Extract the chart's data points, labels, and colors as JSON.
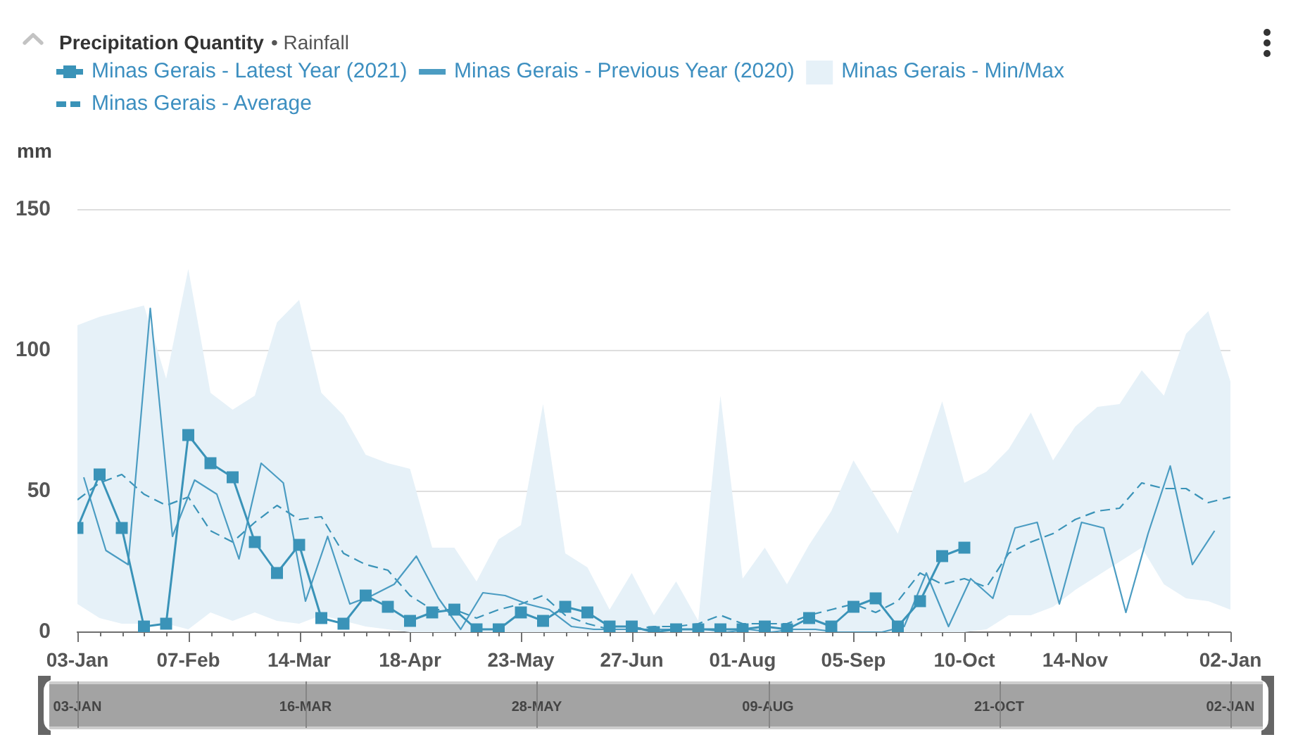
{
  "chart_data": {
    "type": "line",
    "title": "Precipitation Quantity",
    "subtitle": "• Rainfall",
    "ylabel": "mm",
    "x": [
      "2021-01-03",
      "2021-01-10",
      "2021-01-17",
      "2021-01-24",
      "2021-01-31",
      "2021-02-07",
      "2021-02-14",
      "2021-02-21",
      "2021-02-28",
      "2021-03-07",
      "2021-03-14",
      "2021-03-21",
      "2021-03-28",
      "2021-04-04",
      "2021-04-11",
      "2021-04-18",
      "2021-04-25",
      "2021-05-02",
      "2021-05-09",
      "2021-05-16",
      "2021-05-23",
      "2021-05-30",
      "2021-06-06",
      "2021-06-13",
      "2021-06-20",
      "2021-06-27",
      "2021-07-04",
      "2021-07-11",
      "2021-07-18",
      "2021-07-25",
      "2021-08-01",
      "2021-08-08",
      "2021-08-15",
      "2021-08-22",
      "2021-08-29",
      "2021-09-05",
      "2021-09-12",
      "2021-09-19",
      "2021-09-26",
      "2021-10-03",
      "2021-10-10",
      "2021-10-17",
      "2021-10-24",
      "2021-10-31",
      "2021-11-07",
      "2021-11-14",
      "2021-11-21",
      "2021-11-28",
      "2021-12-05",
      "2021-12-12",
      "2021-12-19",
      "2021-12-26",
      "2022-01-02"
    ],
    "series": [
      {
        "name": "Minas Gerais - Latest Year (2021)",
        "color": "#3a93b8",
        "marker": "square",
        "values": [
          37,
          56,
          37,
          2,
          3,
          70,
          60,
          55,
          32,
          21,
          31,
          5,
          3,
          13,
          9,
          4,
          7,
          8,
          1,
          1,
          7,
          4,
          9,
          7,
          2,
          2,
          0,
          1,
          1,
          1,
          1,
          2,
          1,
          5,
          2,
          9,
          12,
          2,
          11,
          27,
          30,
          null,
          null,
          null,
          null,
          null,
          null,
          null,
          null,
          null,
          null,
          null,
          null
        ]
      },
      {
        "name": "Minas Gerais - Previous Year (2020)",
        "color": "#4b9cc2",
        "x": [
          "2021-01-05",
          "2021-01-12",
          "2021-01-19",
          "2021-01-26",
          "2021-02-02",
          "2021-02-09",
          "2021-02-16",
          "2021-02-23",
          "2021-03-02",
          "2021-03-09",
          "2021-03-16",
          "2021-03-23",
          "2021-03-30",
          "2021-04-06",
          "2021-04-13",
          "2021-04-20",
          "2021-04-27",
          "2021-05-04",
          "2021-05-11",
          "2021-05-18",
          "2021-05-25",
          "2021-06-01",
          "2021-06-08",
          "2021-06-15",
          "2021-06-22",
          "2021-06-29",
          "2021-07-06",
          "2021-07-13",
          "2021-07-20",
          "2021-07-27",
          "2021-08-03",
          "2021-08-10",
          "2021-08-17",
          "2021-08-24",
          "2021-08-31",
          "2021-09-07",
          "2021-09-14",
          "2021-09-21",
          "2021-09-28",
          "2021-10-05",
          "2021-10-12",
          "2021-10-19",
          "2021-10-26",
          "2021-11-02",
          "2021-11-09",
          "2021-11-16",
          "2021-11-23",
          "2021-11-30",
          "2021-12-07",
          "2021-12-14",
          "2021-12-21",
          "2021-12-28"
        ],
        "values": [
          55,
          29,
          24,
          115,
          34,
          54,
          49,
          26,
          60,
          53,
          11,
          34,
          10,
          13,
          17,
          27,
          12,
          1,
          14,
          13,
          10,
          8,
          2,
          1,
          1,
          1,
          1,
          1,
          1,
          0,
          1,
          0,
          1,
          1,
          0,
          0,
          0,
          2,
          21,
          2,
          19,
          12,
          37,
          39,
          10,
          39,
          37,
          7,
          35,
          59,
          24,
          36
        ]
      },
      {
        "name": "Minas Gerais - Min/Max",
        "type": "area",
        "color": "#e6f1f8",
        "values": [
          null,
          null,
          null,
          null,
          null,
          null,
          null,
          null,
          null,
          null,
          null,
          null,
          null,
          null,
          null,
          null,
          null,
          null,
          null,
          null,
          null,
          null,
          null,
          null,
          null,
          null,
          null,
          null,
          null,
          null,
          null,
          null,
          null,
          null,
          null,
          null,
          null,
          null,
          null,
          null,
          null,
          null,
          null,
          null,
          null,
          null,
          null,
          null,
          null,
          null,
          null,
          null,
          null
        ],
        "lower": [
          10,
          5,
          3,
          3,
          3,
          1,
          7,
          4,
          7,
          4,
          3,
          6,
          4,
          2,
          1,
          0,
          0,
          0,
          0,
          0,
          0,
          0,
          0,
          0,
          0,
          0,
          0,
          0,
          0,
          0,
          0,
          0,
          0,
          0,
          0,
          0,
          0,
          0,
          0,
          0,
          0,
          1,
          6,
          6,
          9,
          15,
          20,
          25,
          30,
          17,
          12,
          11,
          8
        ],
        "upper": [
          109,
          112,
          114,
          116,
          90,
          129,
          85,
          79,
          84,
          110,
          118,
          85,
          77,
          63,
          60,
          58,
          30,
          30,
          18,
          33,
          38,
          81,
          28,
          23,
          8,
          21,
          6,
          18,
          4,
          84,
          19,
          30,
          17,
          31,
          43,
          61,
          48,
          35,
          58,
          82,
          53,
          57,
          65,
          78,
          61,
          73,
          80,
          81,
          93,
          84,
          106,
          114,
          89
        ]
      },
      {
        "name": "Minas Gerais - Average",
        "color": "#3a93b8",
        "line_style": "dashed",
        "values": [
          47,
          53,
          56,
          49,
          45,
          48,
          36,
          32,
          39,
          45,
          40,
          41,
          28,
          24,
          22,
          13,
          8,
          8,
          5,
          8,
          10,
          13,
          6,
          3,
          1,
          1,
          2,
          2,
          3,
          6,
          3,
          3,
          3,
          6,
          8,
          10,
          7,
          11,
          21,
          17,
          19,
          16,
          28,
          32,
          35,
          40,
          43,
          44,
          53,
          51,
          51,
          46,
          48
        ]
      }
    ],
    "xlim": [
      "2021-01-03",
      "2022-01-02"
    ],
    "xticks": [
      {
        "value": "2021-01-03",
        "label": "03-Jan"
      },
      {
        "value": "2021-01-10",
        "label": null
      },
      {
        "value": "2021-01-17",
        "label": null
      },
      {
        "value": "2021-01-24",
        "label": null
      },
      {
        "value": "2021-01-31",
        "label": null
      },
      {
        "value": "2021-02-07",
        "label": "07-Feb"
      },
      {
        "value": "2021-02-14",
        "label": null
      },
      {
        "value": "2021-02-21",
        "label": null
      },
      {
        "value": "2021-02-28",
        "label": null
      },
      {
        "value": "2021-03-07",
        "label": null
      },
      {
        "value": "2021-03-14",
        "label": "14-Mar"
      },
      {
        "value": "2021-03-21",
        "label": null
      },
      {
        "value": "2021-03-28",
        "label": null
      },
      {
        "value": "2021-04-04",
        "label": null
      },
      {
        "value": "2021-04-11",
        "label": null
      },
      {
        "value": "2021-04-18",
        "label": "18-Apr"
      },
      {
        "value": "2021-04-25",
        "label": null
      },
      {
        "value": "2021-05-02",
        "label": null
      },
      {
        "value": "2021-05-09",
        "label": null
      },
      {
        "value": "2021-05-16",
        "label": null
      },
      {
        "value": "2021-05-23",
        "label": "23-May"
      },
      {
        "value": "2021-05-30",
        "label": null
      },
      {
        "value": "2021-06-06",
        "label": null
      },
      {
        "value": "2021-06-13",
        "label": null
      },
      {
        "value": "2021-06-20",
        "label": null
      },
      {
        "value": "2021-06-27",
        "label": "27-Jun"
      },
      {
        "value": "2021-07-04",
        "label": null
      },
      {
        "value": "2021-07-11",
        "label": null
      },
      {
        "value": "2021-07-18",
        "label": null
      },
      {
        "value": "2021-07-25",
        "label": null
      },
      {
        "value": "2021-08-01",
        "label": "01-Aug"
      },
      {
        "value": "2021-08-08",
        "label": null
      },
      {
        "value": "2021-08-15",
        "label": null
      },
      {
        "value": "2021-08-22",
        "label": null
      },
      {
        "value": "2021-08-29",
        "label": null
      },
      {
        "value": "2021-09-05",
        "label": "05-Sep"
      },
      {
        "value": "2021-09-12",
        "label": null
      },
      {
        "value": "2021-09-19",
        "label": null
      },
      {
        "value": "2021-09-26",
        "label": null
      },
      {
        "value": "2021-10-03",
        "label": null
      },
      {
        "value": "2021-10-10",
        "label": "10-Oct"
      },
      {
        "value": "2021-10-17",
        "label": null
      },
      {
        "value": "2021-10-24",
        "label": null
      },
      {
        "value": "2021-10-31",
        "label": null
      },
      {
        "value": "2021-11-07",
        "label": null
      },
      {
        "value": "2021-11-14",
        "label": "14-Nov"
      },
      {
        "value": "2021-11-21",
        "label": null
      },
      {
        "value": "2021-11-28",
        "label": null
      },
      {
        "value": "2021-12-05",
        "label": null
      },
      {
        "value": "2021-12-12",
        "label": null
      },
      {
        "value": "2021-12-19",
        "label": null
      },
      {
        "value": "2021-12-26",
        "label": null
      },
      {
        "value": "2022-01-02",
        "label": "02-Jan"
      }
    ],
    "x2lim": [
      "2021-01-03",
      "2022-01-02"
    ],
    "x2ticks": [
      {
        "value": "2021-01-03",
        "label": "03-JAN"
      },
      {
        "value": "2021-03-16",
        "label": "16-MAR"
      },
      {
        "value": "2021-05-28",
        "label": "28-MAY"
      },
      {
        "value": "2021-08-09",
        "label": "09-AUG"
      },
      {
        "value": "2021-10-21",
        "label": "21-OCT"
      },
      {
        "value": "2022-01-02",
        "label": "02-JAN"
      }
    ],
    "ylim": [
      0,
      150
    ],
    "yticks": [
      0,
      50,
      100,
      150
    ],
    "grid": "y",
    "legend": "top left"
  }
}
